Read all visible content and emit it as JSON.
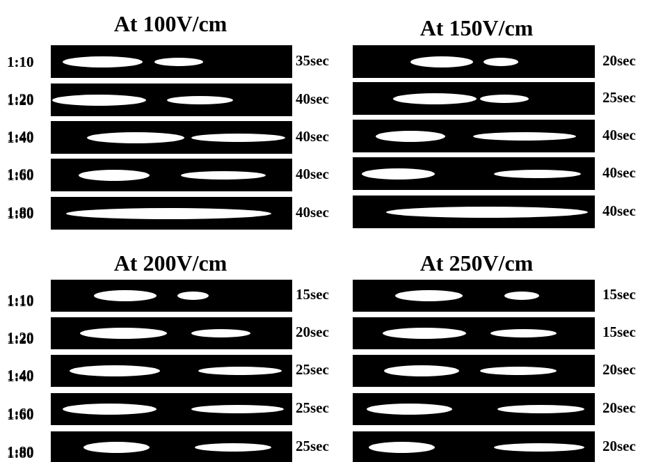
{
  "panels": [
    {
      "title": "At 100V/cm",
      "rows": [
        {
          "ratio": "1:10",
          "time": "35sec"
        },
        {
          "ratio": "1:20",
          "time": "40sec"
        },
        {
          "ratio": "1:40",
          "time": "40sec"
        },
        {
          "ratio": "1:60",
          "time": "40sec"
        },
        {
          "ratio": "1:80",
          "time": "40sec"
        }
      ]
    },
    {
      "title": "At 150V/cm",
      "rows": [
        {
          "ratio": "1:10",
          "time": "20sec"
        },
        {
          "ratio": "1:20",
          "time": "25sec"
        },
        {
          "ratio": "1:40",
          "time": "40sec"
        },
        {
          "ratio": "1:60",
          "time": "40sec"
        },
        {
          "ratio": "1:80",
          "time": "40sec"
        }
      ]
    },
    {
      "title": "At 200V/cm",
      "rows": [
        {
          "ratio": "1:10",
          "time": "15sec"
        },
        {
          "ratio": "1:20",
          "time": "20sec"
        },
        {
          "ratio": "1:40",
          "time": "25sec"
        },
        {
          "ratio": "1:60",
          "time": "25sec"
        },
        {
          "ratio": "1:80",
          "time": "25sec"
        }
      ]
    },
    {
      "title": "At 250V/cm",
      "rows": [
        {
          "ratio": "1:10",
          "time": "15sec"
        },
        {
          "ratio": "1:20",
          "time": "15sec"
        },
        {
          "ratio": "1:40",
          "time": "20sec"
        },
        {
          "ratio": "1:60",
          "time": "20sec"
        },
        {
          "ratio": "1:80",
          "time": "20sec"
        }
      ]
    }
  ]
}
